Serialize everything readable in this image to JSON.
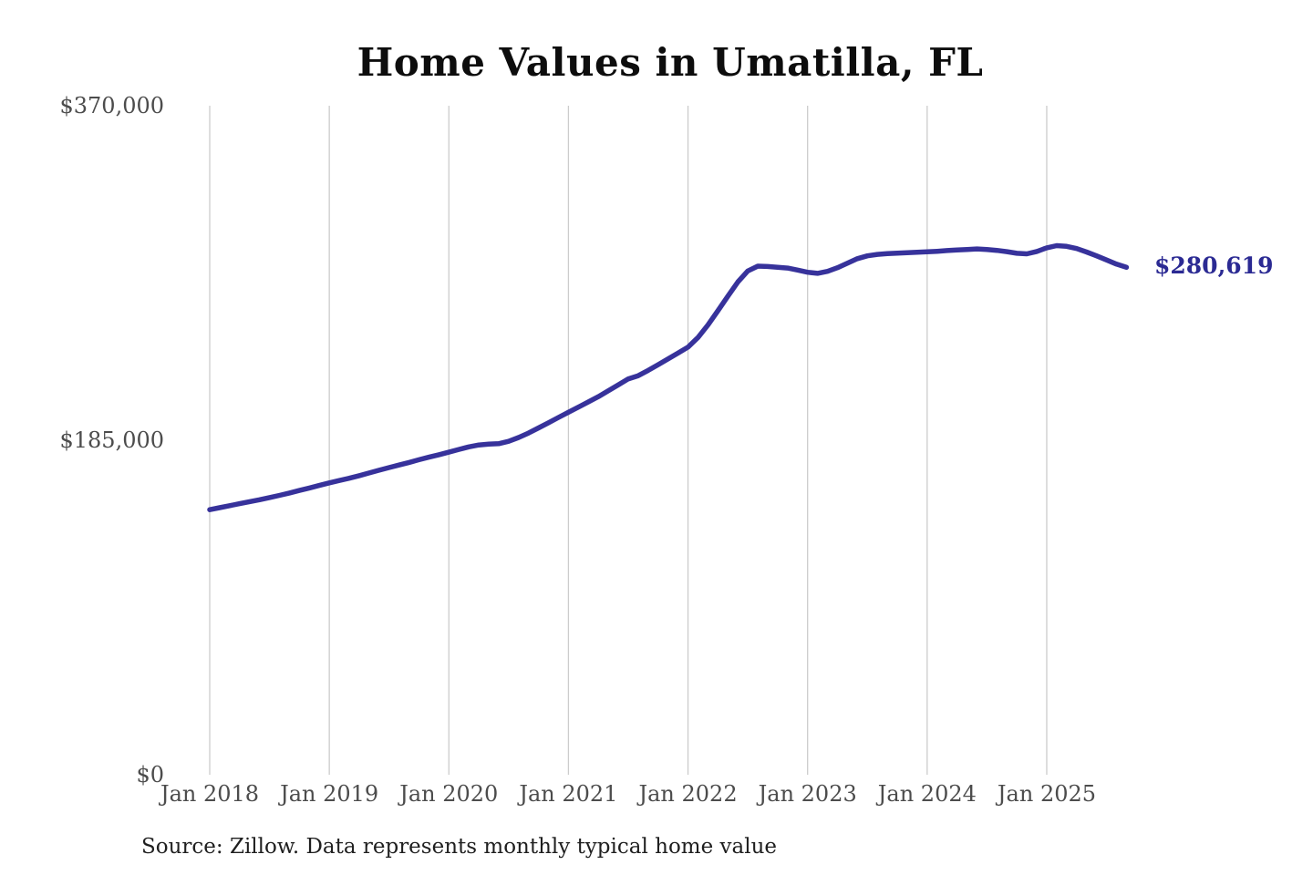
{
  "chart": {
    "title": "Home Values in Umatilla, FL",
    "source_note": "Source: Zillow. Data represents monthly typical home value",
    "end_label": "$280,619",
    "end_label_value": 280619,
    "colors": {
      "line": "#37329b",
      "end_label": "#2b2a93",
      "gridline": "#cccccc",
      "axis_text": "#4c4c4c",
      "title_text": "#0d0d0d",
      "source_text": "#1f1f1f"
    },
    "y_axis": {
      "ticks": [
        {
          "label": "$370,000",
          "value": 370000
        },
        {
          "label": "$185,000",
          "value": 185000
        },
        {
          "label": "$0",
          "value": 0
        }
      ]
    },
    "x_axis": {
      "ticks": [
        "Jan 2018",
        "Jan 2019",
        "Jan 2020",
        "Jan 2021",
        "Jan 2022",
        "Jan 2023",
        "Jan 2024",
        "Jan 2025"
      ]
    }
  },
  "chart_data": {
    "type": "line",
    "title": "Home Values in Umatilla, FL",
    "xlabel": "",
    "ylabel": "",
    "ylim": [
      0,
      370000
    ],
    "y_tick_labels": [
      "$0",
      "$185,000",
      "$370,000"
    ],
    "x_tick_labels": [
      "Jan 2018",
      "Jan 2019",
      "Jan 2020",
      "Jan 2021",
      "Jan 2022",
      "Jan 2023",
      "Jan 2024",
      "Jan 2025"
    ],
    "grid": "vertical-only",
    "legend": "none",
    "annotation": {
      "text": "$280,619",
      "x": "2025-09",
      "value": 280619,
      "position": "right-of-line-end"
    },
    "series": [
      {
        "name": "Monthly typical home value",
        "x": [
          "2018-01",
          "2018-02",
          "2018-03",
          "2018-04",
          "2018-05",
          "2018-06",
          "2018-07",
          "2018-08",
          "2018-09",
          "2018-10",
          "2018-11",
          "2018-12",
          "2019-01",
          "2019-02",
          "2019-03",
          "2019-04",
          "2019-05",
          "2019-06",
          "2019-07",
          "2019-08",
          "2019-09",
          "2019-10",
          "2019-11",
          "2019-12",
          "2020-01",
          "2020-02",
          "2020-03",
          "2020-04",
          "2020-05",
          "2020-06",
          "2020-07",
          "2020-08",
          "2020-09",
          "2020-10",
          "2020-11",
          "2020-12",
          "2021-01",
          "2021-02",
          "2021-03",
          "2021-04",
          "2021-05",
          "2021-06",
          "2021-07",
          "2021-08",
          "2021-09",
          "2021-10",
          "2021-11",
          "2021-12",
          "2022-01",
          "2022-02",
          "2022-03",
          "2022-04",
          "2022-05",
          "2022-06",
          "2022-07",
          "2022-08",
          "2022-09",
          "2022-10",
          "2022-11",
          "2022-12",
          "2023-01",
          "2023-02",
          "2023-03",
          "2023-04",
          "2023-05",
          "2023-06",
          "2023-07",
          "2023-08",
          "2023-09",
          "2023-10",
          "2023-11",
          "2023-12",
          "2024-01",
          "2024-02",
          "2024-03",
          "2024-04",
          "2024-05",
          "2024-06",
          "2024-07",
          "2024-08",
          "2024-09",
          "2024-10",
          "2024-11",
          "2024-12",
          "2025-01",
          "2025-02",
          "2025-03",
          "2025-04",
          "2025-05",
          "2025-06",
          "2025-07",
          "2025-08",
          "2025-09"
        ],
        "values": [
          146600,
          147700,
          148800,
          149900,
          151000,
          152100,
          153300,
          154500,
          155800,
          157200,
          158600,
          160000,
          161400,
          162700,
          164000,
          165400,
          166900,
          168400,
          169900,
          171300,
          172700,
          174200,
          175600,
          177000,
          178400,
          179900,
          181300,
          182400,
          182900,
          183100,
          184400,
          186500,
          189000,
          191800,
          194700,
          197600,
          200500,
          203300,
          206200,
          209100,
          212300,
          215600,
          218900,
          220700,
          223600,
          226800,
          230000,
          233200,
          236500,
          241800,
          248700,
          256600,
          264700,
          272500,
          278600,
          281300,
          281100,
          280700,
          280200,
          279100,
          277900,
          277300,
          278400,
          280400,
          282900,
          285400,
          287000,
          287800,
          288200,
          288500,
          288700,
          289000,
          289200,
          289500,
          289900,
          290200,
          290500,
          290800,
          290500,
          290000,
          289300,
          288400,
          288100,
          289400,
          291400,
          292600,
          292200,
          291000,
          289100,
          287000,
          284700,
          282400,
          280619
        ]
      }
    ]
  }
}
